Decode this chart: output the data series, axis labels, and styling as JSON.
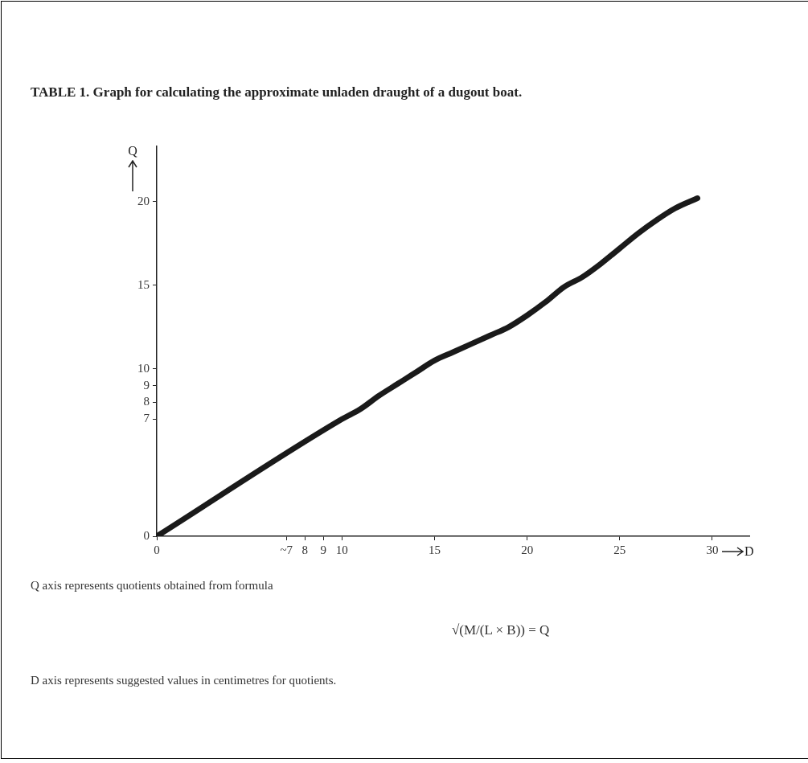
{
  "chart_data": {
    "type": "line",
    "title": "TABLE 1. Graph for calculating the approximate unladen draught of a dugout boat.",
    "xlabel": "D",
    "ylabel": "Q",
    "x": [
      0,
      10,
      11,
      12,
      13,
      14,
      15,
      16,
      17,
      18,
      19,
      20,
      21,
      22,
      23,
      24,
      25,
      26,
      27,
      28,
      29.2
    ],
    "series": [
      {
        "color": "#1a1a1a",
        "values": [
          0,
          7.0,
          7.6,
          8.4,
          9.1,
          9.8,
          10.5,
          11.0,
          11.5,
          12.0,
          12.5,
          13.2,
          14.0,
          14.9,
          15.5,
          16.3,
          17.2,
          18.1,
          18.9,
          19.6,
          20.2
        ]
      }
    ],
    "xlim": [
      0,
      32
    ],
    "ylim": [
      0,
      23.3
    ],
    "xticks": [
      0,
      {
        "value": 7,
        "label": "~7"
      },
      8,
      9,
      10,
      15,
      20,
      25,
      30
    ],
    "yticks": [
      0,
      7,
      8,
      9,
      10,
      15,
      20
    ],
    "grid": false,
    "legend": false,
    "line_style": "solid",
    "annotations": [
      "Q axis represents quotients obtained from formula",
      "√(M/(L × B)) = Q",
      "D axis represents suggested values in centimetres for quotients."
    ]
  }
}
